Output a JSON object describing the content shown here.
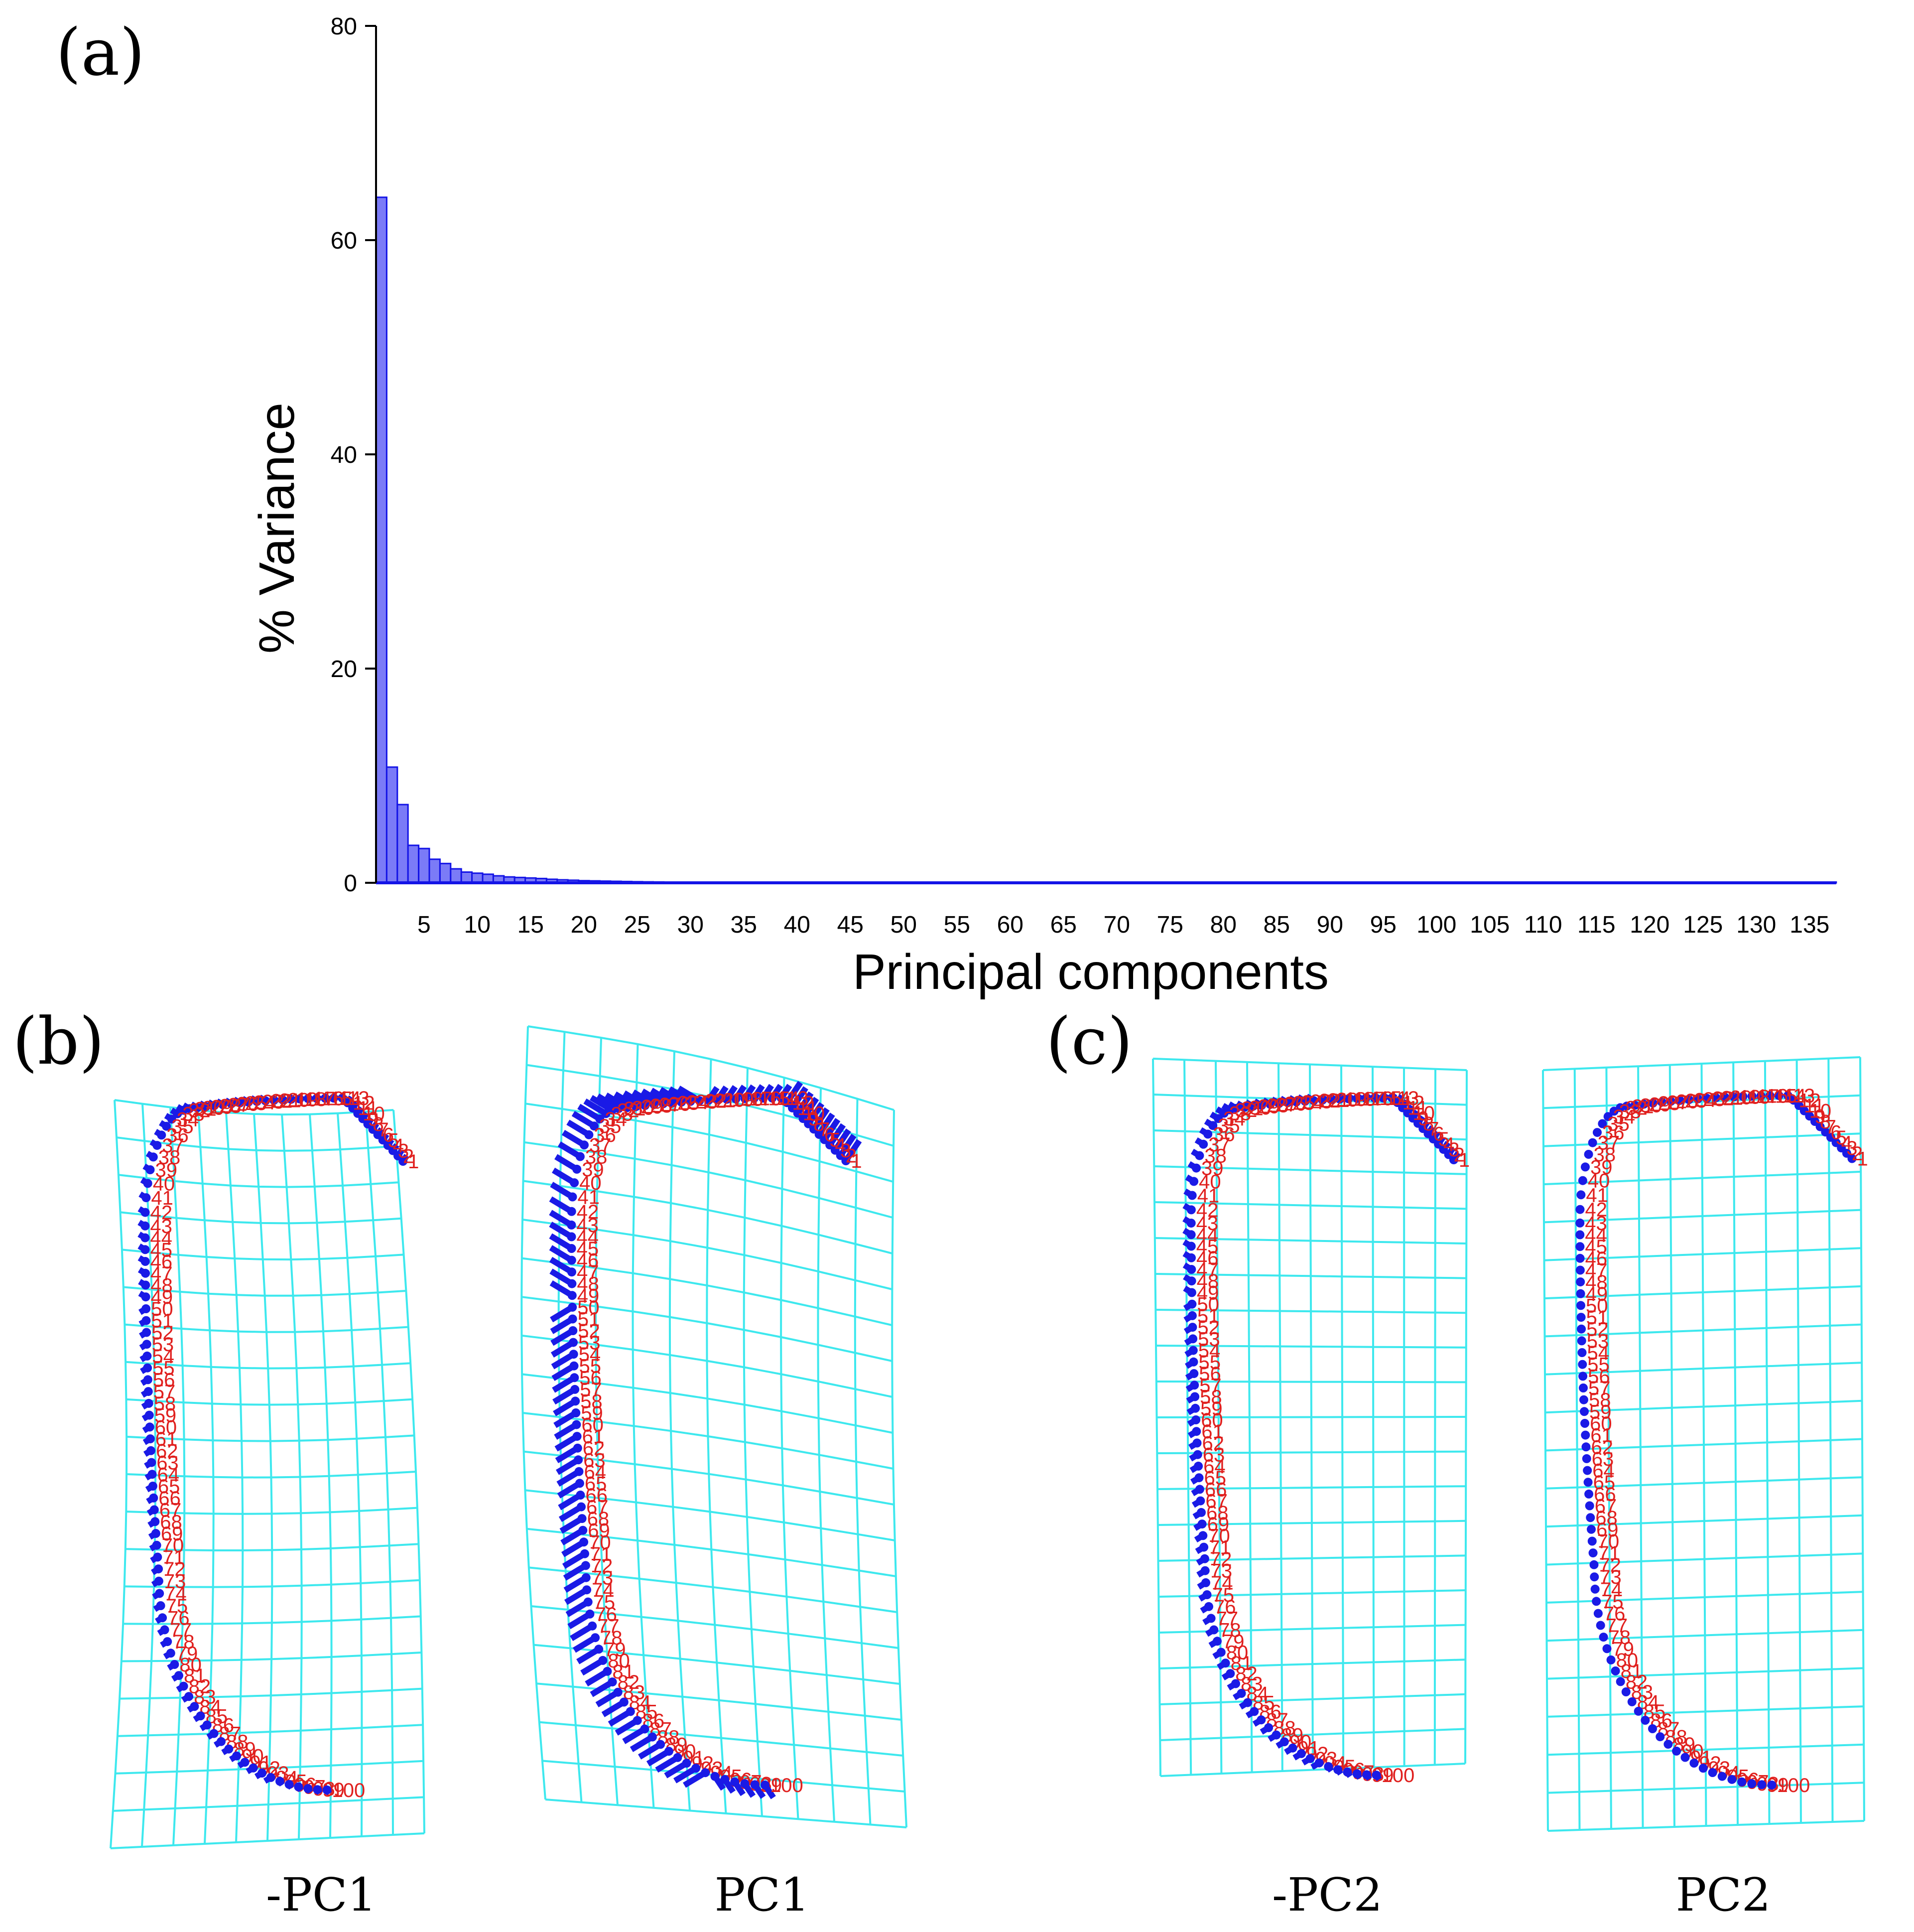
{
  "panels": {
    "a": "(a)",
    "b": "(b)",
    "c": "(c)"
  },
  "chart_data": {
    "type": "bar",
    "title": "",
    "xlabel": "Principal components",
    "ylabel": "% Variance",
    "ylim": [
      0,
      80
    ],
    "yticks": [
      "0",
      "20",
      "40",
      "60",
      "80"
    ],
    "xticks": [
      "5",
      "10",
      "15",
      "20",
      "25",
      "30",
      "35",
      "40",
      "45",
      "50",
      "55",
      "60",
      "65",
      "70",
      "75",
      "80",
      "85",
      "90",
      "95",
      "100",
      "105",
      "110",
      "115",
      "120",
      "125",
      "130",
      "135"
    ],
    "n_components": 137,
    "values": [
      64.0,
      10.8,
      7.3,
      3.5,
      3.2,
      2.2,
      1.8,
      1.3,
      1.0,
      0.9,
      0.8,
      0.65,
      0.55,
      0.5,
      0.45,
      0.4,
      0.33,
      0.28,
      0.24,
      0.2,
      0.18,
      0.16,
      0.14,
      0.12,
      0.1,
      0.09,
      0.08,
      0.07,
      0.06,
      0.05
    ],
    "grid": false,
    "legend": "none"
  },
  "deformations": {
    "captions": [
      "-PC1",
      "PC1",
      "-PC2",
      "PC2"
    ],
    "landmarks": [
      "1",
      "2",
      "3",
      "4",
      "5",
      "6",
      "7",
      "8",
      "9",
      "10",
      "11",
      "12",
      "13",
      "14",
      "15",
      "16",
      "17",
      "18",
      "19",
      "20",
      "21",
      "22",
      "23",
      "24",
      "25",
      "26",
      "27",
      "28",
      "29",
      "30",
      "31",
      "32",
      "33",
      "34",
      "35",
      "36",
      "37",
      "38",
      "39",
      "40",
      "41",
      "42",
      "43",
      "44",
      "45",
      "46",
      "47",
      "48",
      "49",
      "50",
      "51",
      "52",
      "53",
      "54",
      "55",
      "56",
      "57",
      "58",
      "59",
      "60",
      "61",
      "62",
      "63",
      "64",
      "65",
      "66",
      "67",
      "68",
      "69",
      "70",
      "71",
      "72",
      "73",
      "74",
      "75",
      "76",
      "77",
      "78",
      "79",
      "80",
      "81",
      "82",
      "83",
      "84",
      "85",
      "86",
      "87",
      "88",
      "89",
      "90",
      "91",
      "92",
      "93",
      "94",
      "95",
      "96",
      "97",
      "98",
      "99",
      "100"
    ],
    "colors": {
      "grid": "#3ee8ee",
      "landmarks": "#1a1ae6",
      "labels": "#e0201e",
      "bars": "#7b7bf7"
    }
  }
}
